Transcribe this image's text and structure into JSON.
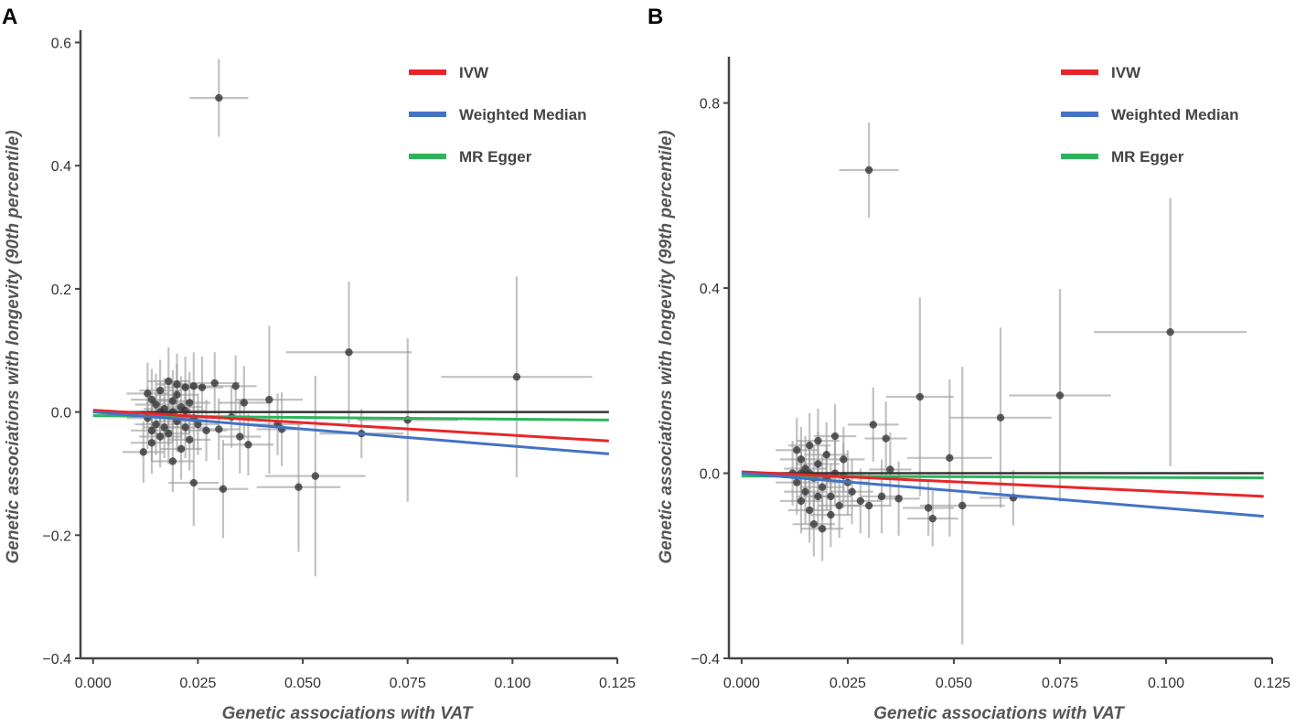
{
  "chart_data": [
    {
      "type": "scatter",
      "panel_label": "A",
      "title": "",
      "xlabel": "Genetic associations with VAT",
      "ylabel": "Genetic associations with longevity (90th percentile)",
      "xlim": [
        -0.003,
        0.125
      ],
      "ylim": [
        -0.4,
        0.62
      ],
      "xticks": [
        0.0,
        0.025,
        0.05,
        0.075,
        0.1,
        0.125
      ],
      "xtick_labels": [
        "0.000",
        "0.025",
        "0.050",
        "0.075",
        "0.100",
        "0.125"
      ],
      "yticks": [
        -0.4,
        -0.2,
        0.0,
        0.2,
        0.4,
        0.6
      ],
      "ytick_labels": [
        "−0.4",
        "−0.2",
        "0.0",
        "0.2",
        "0.4",
        "0.6"
      ],
      "legend_position": "top-right",
      "lines": [
        {
          "name": "IVW",
          "color": "#e8262a",
          "x": [
            0.0,
            0.123
          ],
          "y": [
            0.003,
            -0.047
          ]
        },
        {
          "name": "Weighted Median",
          "color": "#4472c4",
          "x": [
            0.0,
            0.123
          ],
          "y": [
            0.0,
            -0.068
          ]
        },
        {
          "name": "MR Egger",
          "color": "#2db45a",
          "x": [
            0.0,
            0.123
          ],
          "y": [
            -0.006,
            -0.013
          ]
        }
      ],
      "reference_line": {
        "color": "#333333",
        "x": [
          0.0,
          0.123
        ],
        "y": [
          0.0,
          0.0
        ]
      },
      "points": [
        {
          "x": 0.03,
          "y": 0.51,
          "xerr": 0.007,
          "yerr": 0.063
        },
        {
          "x": 0.061,
          "y": 0.097,
          "xerr": 0.015,
          "yerr": 0.115
        },
        {
          "x": 0.101,
          "y": 0.057,
          "xerr": 0.018,
          "yerr": 0.163
        },
        {
          "x": 0.075,
          "y": -0.013,
          "xerr": 0.012,
          "yerr": 0.133
        },
        {
          "x": 0.064,
          "y": -0.035,
          "xerr": 0.01,
          "yerr": 0.04
        },
        {
          "x": 0.049,
          "y": -0.122,
          "xerr": 0.01,
          "yerr": 0.105
        },
        {
          "x": 0.053,
          "y": -0.104,
          "xerr": 0.012,
          "yerr": 0.163
        },
        {
          "x": 0.042,
          "y": 0.02,
          "xerr": 0.008,
          "yerr": 0.12
        },
        {
          "x": 0.044,
          "y": -0.02,
          "xerr": 0.006,
          "yerr": 0.05
        },
        {
          "x": 0.045,
          "y": -0.028,
          "xerr": 0.006,
          "yerr": 0.06
        },
        {
          "x": 0.036,
          "y": 0.015,
          "xerr": 0.006,
          "yerr": 0.06
        },
        {
          "x": 0.037,
          "y": -0.053,
          "xerr": 0.006,
          "yerr": 0.05
        },
        {
          "x": 0.031,
          "y": -0.125,
          "xerr": 0.006,
          "yerr": 0.08
        },
        {
          "x": 0.024,
          "y": -0.115,
          "xerr": 0.006,
          "yerr": 0.07
        },
        {
          "x": 0.029,
          "y": 0.047,
          "xerr": 0.006,
          "yerr": 0.05
        },
        {
          "x": 0.034,
          "y": 0.042,
          "xerr": 0.005,
          "yerr": 0.05
        },
        {
          "x": 0.035,
          "y": -0.04,
          "xerr": 0.005,
          "yerr": 0.06
        },
        {
          "x": 0.018,
          "y": 0.05,
          "xerr": 0.005,
          "yerr": 0.055
        },
        {
          "x": 0.02,
          "y": 0.045,
          "xerr": 0.005,
          "yerr": 0.05
        },
        {
          "x": 0.022,
          "y": 0.04,
          "xerr": 0.005,
          "yerr": 0.05
        },
        {
          "x": 0.024,
          "y": 0.042,
          "xerr": 0.005,
          "yerr": 0.055
        },
        {
          "x": 0.026,
          "y": 0.04,
          "xerr": 0.005,
          "yerr": 0.05
        },
        {
          "x": 0.013,
          "y": 0.03,
          "xerr": 0.005,
          "yerr": 0.05
        },
        {
          "x": 0.014,
          "y": 0.02,
          "xerr": 0.005,
          "yerr": 0.05
        },
        {
          "x": 0.015,
          "y": 0.012,
          "xerr": 0.005,
          "yerr": 0.05
        },
        {
          "x": 0.016,
          "y": 0.035,
          "xerr": 0.005,
          "yerr": 0.05
        },
        {
          "x": 0.017,
          "y": 0.005,
          "xerr": 0.005,
          "yerr": 0.05
        },
        {
          "x": 0.018,
          "y": -0.005,
          "xerr": 0.005,
          "yerr": 0.05
        },
        {
          "x": 0.019,
          "y": 0.018,
          "xerr": 0.005,
          "yerr": 0.05
        },
        {
          "x": 0.02,
          "y": -0.015,
          "xerr": 0.005,
          "yerr": 0.05
        },
        {
          "x": 0.021,
          "y": 0.008,
          "xerr": 0.005,
          "yerr": 0.05
        },
        {
          "x": 0.022,
          "y": -0.025,
          "xerr": 0.005,
          "yerr": 0.05
        },
        {
          "x": 0.023,
          "y": 0.015,
          "xerr": 0.005,
          "yerr": 0.05
        },
        {
          "x": 0.024,
          "y": -0.01,
          "xerr": 0.005,
          "yerr": 0.05
        },
        {
          "x": 0.025,
          "y": -0.02,
          "xerr": 0.005,
          "yerr": 0.05
        },
        {
          "x": 0.013,
          "y": -0.01,
          "xerr": 0.005,
          "yerr": 0.05
        },
        {
          "x": 0.014,
          "y": -0.03,
          "xerr": 0.005,
          "yerr": 0.05
        },
        {
          "x": 0.015,
          "y": -0.02,
          "xerr": 0.005,
          "yerr": 0.05
        },
        {
          "x": 0.016,
          "y": -0.04,
          "xerr": 0.005,
          "yerr": 0.05
        },
        {
          "x": 0.017,
          "y": -0.025,
          "xerr": 0.005,
          "yerr": 0.05
        },
        {
          "x": 0.012,
          "y": -0.065,
          "xerr": 0.005,
          "yerr": 0.05
        },
        {
          "x": 0.019,
          "y": -0.08,
          "xerr": 0.005,
          "yerr": 0.05
        },
        {
          "x": 0.021,
          "y": -0.06,
          "xerr": 0.005,
          "yerr": 0.05
        },
        {
          "x": 0.023,
          "y": -0.045,
          "xerr": 0.005,
          "yerr": 0.05
        },
        {
          "x": 0.014,
          "y": -0.05,
          "xerr": 0.005,
          "yerr": 0.05
        },
        {
          "x": 0.018,
          "y": -0.035,
          "xerr": 0.005,
          "yerr": 0.05
        },
        {
          "x": 0.02,
          "y": 0.028,
          "xerr": 0.005,
          "yerr": 0.05
        },
        {
          "x": 0.016,
          "y": 0.0,
          "xerr": 0.005,
          "yerr": 0.05
        },
        {
          "x": 0.019,
          "y": 0.0,
          "xerr": 0.005,
          "yerr": 0.05
        },
        {
          "x": 0.022,
          "y": 0.002,
          "xerr": 0.005,
          "yerr": 0.05
        },
        {
          "x": 0.027,
          "y": -0.03,
          "xerr": 0.005,
          "yerr": 0.05
        },
        {
          "x": 0.03,
          "y": -0.028,
          "xerr": 0.005,
          "yerr": 0.05
        },
        {
          "x": 0.033,
          "y": -0.008,
          "xerr": 0.005,
          "yerr": 0.05
        }
      ]
    },
    {
      "type": "scatter",
      "panel_label": "B",
      "title": "",
      "xlabel": "Genetic associations with VAT",
      "ylabel": "Genetic associations with longevity (99th percentile)",
      "xlim": [
        -0.003,
        0.125
      ],
      "ylim": [
        -0.4,
        0.9
      ],
      "xticks": [
        0.0,
        0.025,
        0.05,
        0.075,
        0.1,
        0.125
      ],
      "xtick_labels": [
        "0.000",
        "0.025",
        "0.050",
        "0.075",
        "0.100",
        "0.125"
      ],
      "yticks": [
        -0.4,
        0.0,
        0.4,
        0.8
      ],
      "ytick_labels": [
        "−0.4",
        "0.0",
        "0.4",
        "0.8"
      ],
      "legend_position": "top-right",
      "lines": [
        {
          "name": "IVW",
          "color": "#e8262a",
          "x": [
            0.0,
            0.123
          ],
          "y": [
            0.003,
            -0.05
          ]
        },
        {
          "name": "Weighted Median",
          "color": "#4472c4",
          "x": [
            0.0,
            0.123
          ],
          "y": [
            0.0,
            -0.093
          ]
        },
        {
          "name": "MR Egger",
          "color": "#2db45a",
          "x": [
            0.0,
            0.123
          ],
          "y": [
            -0.006,
            -0.01
          ]
        }
      ],
      "reference_line": {
        "color": "#333333",
        "x": [
          0.0,
          0.123
        ],
        "y": [
          0.0,
          0.0
        ]
      },
      "points": [
        {
          "x": 0.03,
          "y": 0.655,
          "xerr": 0.007,
          "yerr": 0.103
        },
        {
          "x": 0.101,
          "y": 0.305,
          "xerr": 0.018,
          "yerr": 0.29
        },
        {
          "x": 0.075,
          "y": 0.168,
          "xerr": 0.012,
          "yerr": 0.23
        },
        {
          "x": 0.061,
          "y": 0.12,
          "xerr": 0.012,
          "yerr": 0.195
        },
        {
          "x": 0.042,
          "y": 0.165,
          "xerr": 0.008,
          "yerr": 0.215
        },
        {
          "x": 0.049,
          "y": 0.033,
          "xerr": 0.01,
          "yerr": 0.17
        },
        {
          "x": 0.052,
          "y": -0.07,
          "xerr": 0.01,
          "yerr": 0.3
        },
        {
          "x": 0.064,
          "y": -0.053,
          "xerr": 0.008,
          "yerr": 0.06
        },
        {
          "x": 0.045,
          "y": -0.098,
          "xerr": 0.006,
          "yerr": 0.06
        },
        {
          "x": 0.044,
          "y": -0.075,
          "xerr": 0.006,
          "yerr": 0.06
        },
        {
          "x": 0.031,
          "y": 0.105,
          "xerr": 0.006,
          "yerr": 0.08
        },
        {
          "x": 0.034,
          "y": 0.075,
          "xerr": 0.005,
          "yerr": 0.08
        },
        {
          "x": 0.035,
          "y": 0.008,
          "xerr": 0.005,
          "yerr": 0.08
        },
        {
          "x": 0.037,
          "y": -0.055,
          "xerr": 0.005,
          "yerr": 0.08
        },
        {
          "x": 0.033,
          "y": -0.05,
          "xerr": 0.005,
          "yerr": 0.08
        },
        {
          "x": 0.013,
          "y": 0.05,
          "xerr": 0.005,
          "yerr": 0.07
        },
        {
          "x": 0.014,
          "y": 0.03,
          "xerr": 0.005,
          "yerr": 0.07
        },
        {
          "x": 0.015,
          "y": 0.01,
          "xerr": 0.005,
          "yerr": 0.07
        },
        {
          "x": 0.016,
          "y": 0.06,
          "xerr": 0.005,
          "yerr": 0.07
        },
        {
          "x": 0.017,
          "y": -0.01,
          "xerr": 0.005,
          "yerr": 0.07
        },
        {
          "x": 0.018,
          "y": 0.02,
          "xerr": 0.005,
          "yerr": 0.07
        },
        {
          "x": 0.019,
          "y": -0.03,
          "xerr": 0.005,
          "yerr": 0.07
        },
        {
          "x": 0.02,
          "y": 0.04,
          "xerr": 0.005,
          "yerr": 0.07
        },
        {
          "x": 0.021,
          "y": -0.05,
          "xerr": 0.005,
          "yerr": 0.07
        },
        {
          "x": 0.022,
          "y": 0.0,
          "xerr": 0.005,
          "yerr": 0.07
        },
        {
          "x": 0.023,
          "y": -0.07,
          "xerr": 0.005,
          "yerr": 0.07
        },
        {
          "x": 0.024,
          "y": 0.03,
          "xerr": 0.005,
          "yerr": 0.07
        },
        {
          "x": 0.025,
          "y": -0.02,
          "xerr": 0.005,
          "yerr": 0.07
        },
        {
          "x": 0.013,
          "y": -0.02,
          "xerr": 0.005,
          "yerr": 0.07
        },
        {
          "x": 0.014,
          "y": -0.06,
          "xerr": 0.005,
          "yerr": 0.07
        },
        {
          "x": 0.015,
          "y": -0.04,
          "xerr": 0.005,
          "yerr": 0.07
        },
        {
          "x": 0.016,
          "y": -0.08,
          "xerr": 0.005,
          "yerr": 0.07
        },
        {
          "x": 0.017,
          "y": -0.11,
          "xerr": 0.005,
          "yerr": 0.07
        },
        {
          "x": 0.019,
          "y": -0.12,
          "xerr": 0.005,
          "yerr": 0.07
        },
        {
          "x": 0.021,
          "y": -0.09,
          "xerr": 0.005,
          "yerr": 0.07
        },
        {
          "x": 0.012,
          "y": 0.0,
          "xerr": 0.005,
          "yerr": 0.07
        },
        {
          "x": 0.018,
          "y": 0.07,
          "xerr": 0.005,
          "yerr": 0.07
        },
        {
          "x": 0.022,
          "y": 0.08,
          "xerr": 0.005,
          "yerr": 0.07
        },
        {
          "x": 0.026,
          "y": -0.04,
          "xerr": 0.005,
          "yerr": 0.07
        },
        {
          "x": 0.028,
          "y": -0.06,
          "xerr": 0.005,
          "yerr": 0.07
        },
        {
          "x": 0.03,
          "y": -0.07,
          "xerr": 0.005,
          "yerr": 0.07
        },
        {
          "x": 0.016,
          "y": 0.0,
          "xerr": 0.005,
          "yerr": 0.07
        },
        {
          "x": 0.02,
          "y": -0.01,
          "xerr": 0.005,
          "yerr": 0.07
        },
        {
          "x": 0.024,
          "y": -0.005,
          "xerr": 0.005,
          "yerr": 0.07
        },
        {
          "x": 0.014,
          "y": 0.0,
          "xerr": 0.005,
          "yerr": 0.07
        },
        {
          "x": 0.018,
          "y": -0.05,
          "xerr": 0.005,
          "yerr": 0.07
        }
      ]
    }
  ]
}
